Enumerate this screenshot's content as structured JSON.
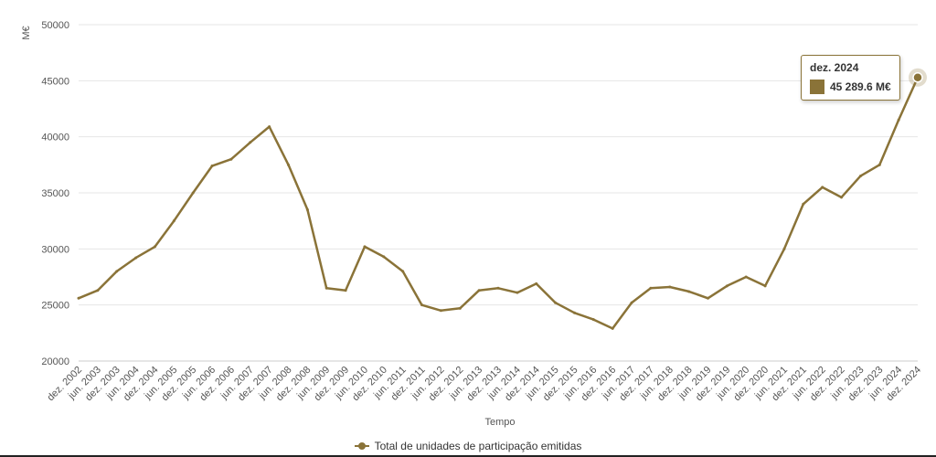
{
  "chart_data": {
    "type": "line",
    "ylabel": "M€",
    "xlabel": "Tempo",
    "ylim": [
      20000,
      50000
    ],
    "yticks": [
      20000,
      25000,
      30000,
      35000,
      40000,
      45000,
      50000
    ],
    "xticks": [
      "dez. 2002",
      "jun. 2003",
      "dez. 2003",
      "jun. 2004",
      "dez. 2004",
      "jun. 2005",
      "dez. 2005",
      "jun. 2006",
      "dez. 2006",
      "jun. 2007",
      "dez. 2007",
      "jun. 2008",
      "dez. 2008",
      "jun. 2009",
      "dez. 2009",
      "jun. 2010",
      "dez. 2010",
      "jun. 2011",
      "dez. 2011",
      "jun. 2012",
      "dez. 2012",
      "jun. 2013",
      "dez. 2013",
      "jun. 2014",
      "dez. 2014",
      "jun. 2015",
      "dez. 2015",
      "jun. 2016",
      "dez. 2016",
      "jun. 2017",
      "dez. 2017",
      "jun. 2018",
      "dez. 2018",
      "jun. 2019",
      "dez. 2019",
      "jun. 2020",
      "dez. 2020",
      "jun. 2021",
      "dez. 2021",
      "jun. 2022",
      "dez. 2022",
      "jun. 2023",
      "dez. 2023",
      "jun. 2024",
      "dez. 2024"
    ],
    "grid": true,
    "legend_position": "bottom-center",
    "series": [
      {
        "name": "Total de unidades de participação emitidas",
        "color": "#8a7338",
        "x": [
          "dez. 2002",
          "jun. 2003",
          "dez. 2003",
          "jun. 2004",
          "dez. 2004",
          "jun. 2005",
          "dez. 2005",
          "jun. 2006",
          "dez. 2006",
          "jun. 2007",
          "dez. 2007",
          "jun. 2008",
          "dez. 2008",
          "jun. 2009",
          "dez. 2009",
          "jun. 2010",
          "dez. 2010",
          "jun. 2011",
          "dez. 2011",
          "jun. 2012",
          "dez. 2012",
          "jun. 2013",
          "dez. 2013",
          "jun. 2014",
          "dez. 2014",
          "jun. 2015",
          "dez. 2015",
          "jun. 2016",
          "dez. 2016",
          "jun. 2017",
          "dez. 2017",
          "jun. 2018",
          "dez. 2018",
          "jun. 2019",
          "dez. 2019",
          "jun. 2020",
          "dez. 2020",
          "jun. 2021",
          "dez. 2021",
          "jun. 2022",
          "dez. 2022",
          "jun. 2023",
          "dez. 2023",
          "jun. 2024",
          "dez. 2024"
        ],
        "values": [
          25600,
          26300,
          28000,
          29200,
          30200,
          32500,
          35000,
          37400,
          38000,
          39500,
          40900,
          37500,
          33500,
          26500,
          26300,
          30200,
          29300,
          28000,
          25000,
          24500,
          24700,
          26300,
          26500,
          26100,
          26900,
          25200,
          24300,
          23700,
          22900,
          25200,
          26500,
          26600,
          26200,
          25600,
          26700,
          27500,
          26700,
          30000,
          34000,
          35500,
          34600,
          36500,
          37500,
          41500,
          45289.6
        ]
      }
    ],
    "tooltip": {
      "date": "dez. 2024",
      "value": "45 289.6 M€"
    }
  }
}
